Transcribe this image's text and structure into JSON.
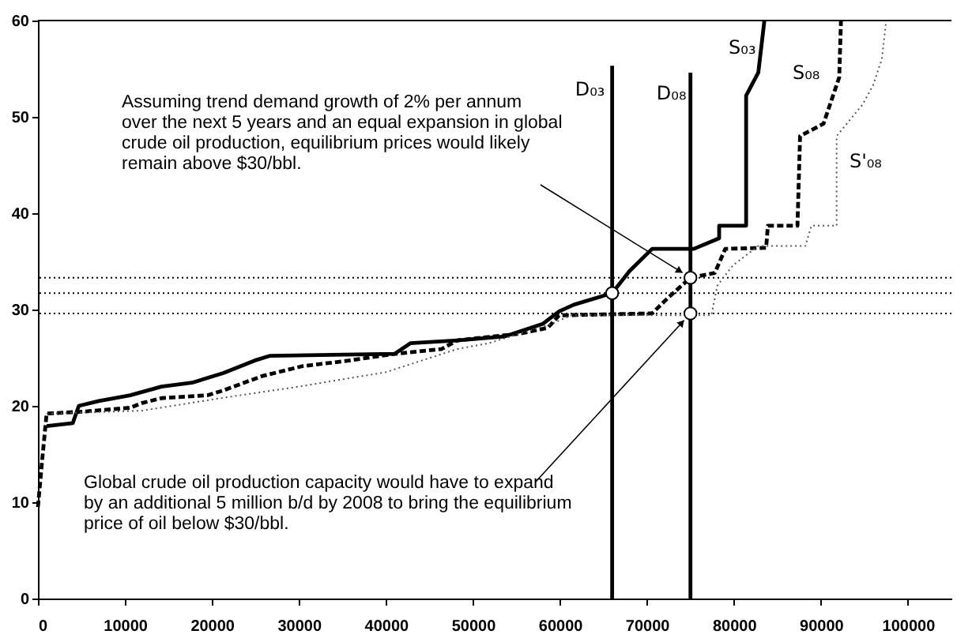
{
  "chart_data": {
    "type": "line",
    "xlim": [
      0,
      105000
    ],
    "ylim": [
      0,
      60
    ],
    "xticks": [
      0,
      10000,
      20000,
      30000,
      40000,
      50000,
      60000,
      70000,
      80000,
      90000,
      100000
    ],
    "yticks": [
      0,
      10,
      20,
      30,
      40,
      50,
      60
    ],
    "grid": false,
    "series": [
      {
        "name": "S₀₃",
        "color": "#000000",
        "line_style": "solid",
        "x": [
          1000,
          4000,
          4700,
          7000,
          10600,
          14200,
          17700,
          21300,
          24900,
          26700,
          41000,
          42800,
          48200,
          53600,
          58000,
          59900,
          61600,
          66000,
          68000,
          70600,
          75400,
          78300,
          78300,
          81400,
          81400,
          82800,
          83500
        ],
        "values": [
          17.9,
          18.2,
          20,
          20.5,
          21.1,
          22,
          22.4,
          23.4,
          24.7,
          25.2,
          25.4,
          26.5,
          26.8,
          27.2,
          28.5,
          29.8,
          30.5,
          31.7,
          34,
          36.3,
          36.3,
          37.4,
          38.7,
          38.7,
          52.2,
          54.6,
          60
        ]
      },
      {
        "name": "S₀₈",
        "color": "#000000",
        "line_style": "dashed",
        "x": [
          0,
          500,
          1000,
          5200,
          10600,
          12000,
          14200,
          19500,
          21300,
          25800,
          30300,
          35700,
          41000,
          46400,
          48200,
          55400,
          58600,
          59900,
          70600,
          72400,
          75000,
          77800,
          79000,
          83700,
          83900,
          87300,
          87600,
          90300,
          92100,
          92300
        ],
        "values": [
          9.5,
          14.5,
          19.2,
          19.4,
          19.8,
          20.3,
          20.8,
          21.1,
          21.6,
          23.1,
          24.1,
          24.7,
          25.4,
          25.9,
          26.8,
          27.5,
          28.1,
          29.4,
          29.6,
          31.2,
          33.3,
          33.8,
          36.3,
          36.4,
          38.7,
          38.7,
          48,
          49.3,
          54.1,
          60
        ]
      },
      {
        "name": "S'₀₈",
        "color": "#555555",
        "line_style": "dotted",
        "x": [
          1000,
          12000,
          21000,
          30000,
          40000,
          48200,
          51800,
          59000,
          61300,
          77400,
          78100,
          79900,
          82800,
          88200,
          88900,
          91800,
          91800,
          94800,
          96000,
          97000,
          97500
        ],
        "values": [
          19.2,
          19.5,
          20.8,
          22,
          23.5,
          25.9,
          26.5,
          28.5,
          29.4,
          29.4,
          32.5,
          34.6,
          36.6,
          36.6,
          38.7,
          38.7,
          48,
          51.3,
          53.3,
          56,
          60
        ]
      },
      {
        "name": "D₀₃",
        "color": "#000000",
        "line_style": "solid",
        "x": [
          66000,
          66000
        ],
        "values": [
          0,
          55.3
        ]
      },
      {
        "name": "D₀₈",
        "color": "#000000",
        "line_style": "solid",
        "x": [
          75000,
          75000
        ],
        "values": [
          0,
          54.6
        ]
      },
      {
        "type": "scatter",
        "color": "#000000",
        "marker": "circle",
        "x": [
          66000,
          75000,
          75000
        ],
        "values": [
          31.7,
          33.3,
          29.6
        ]
      }
    ],
    "ref_lines": [
      {
        "axis": "y",
        "value": 33.3,
        "line_style": "dotted",
        "color": "#000000"
      },
      {
        "axis": "y",
        "value": 31.7,
        "line_style": "dotted",
        "color": "#000000"
      },
      {
        "axis": "y",
        "value": 29.6,
        "line_style": "dotted",
        "color": "#000000"
      }
    ],
    "annotations": [
      {
        "text": "Assuming trend demand growth of 2% per annum\nover the next 5 years and an equal expansion in global\ncrude oil production, equilibrium prices would likely\nremain above $30/bbl.",
        "x": 75000,
        "y": 33.3
      },
      {
        "text": "Global crude oil production capacity would have to expand\nby an additional 5 million b/d by 2008 to bring the equilibrium\nprice of oil below $30/bbl.",
        "x": 75000,
        "y": 29.6
      }
    ]
  }
}
